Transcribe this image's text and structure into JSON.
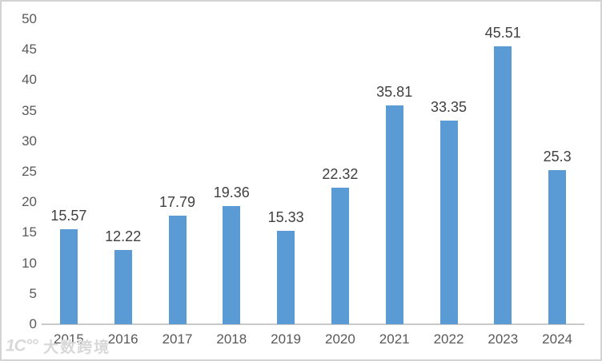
{
  "chart_data": {
    "type": "bar",
    "title": "",
    "xlabel": "",
    "ylabel": "",
    "categories": [
      "2015",
      "2016",
      "2017",
      "2018",
      "2019",
      "2020",
      "2021",
      "2022",
      "2023",
      "2024"
    ],
    "values": [
      15.57,
      12.22,
      17.79,
      19.36,
      15.33,
      22.32,
      35.81,
      33.35,
      45.51,
      25.3
    ],
    "value_labels": [
      "15.57",
      "12.22",
      "17.79",
      "19.36",
      "15.33",
      "22.32",
      "35.81",
      "33.35",
      "45.51",
      "25.3"
    ],
    "yticks": [
      0,
      5,
      10,
      15,
      20,
      25,
      30,
      35,
      40,
      45,
      50
    ],
    "ylim": [
      0,
      50
    ],
    "grid": false,
    "legend": "none",
    "bar_color": "#5B9BD5",
    "data_label_color": "#404040",
    "tick_label_color": "#595959",
    "axis_line_color": "#C9C9C9"
  },
  "watermark": {
    "logo": "1C°°",
    "text": "大数跨境"
  }
}
